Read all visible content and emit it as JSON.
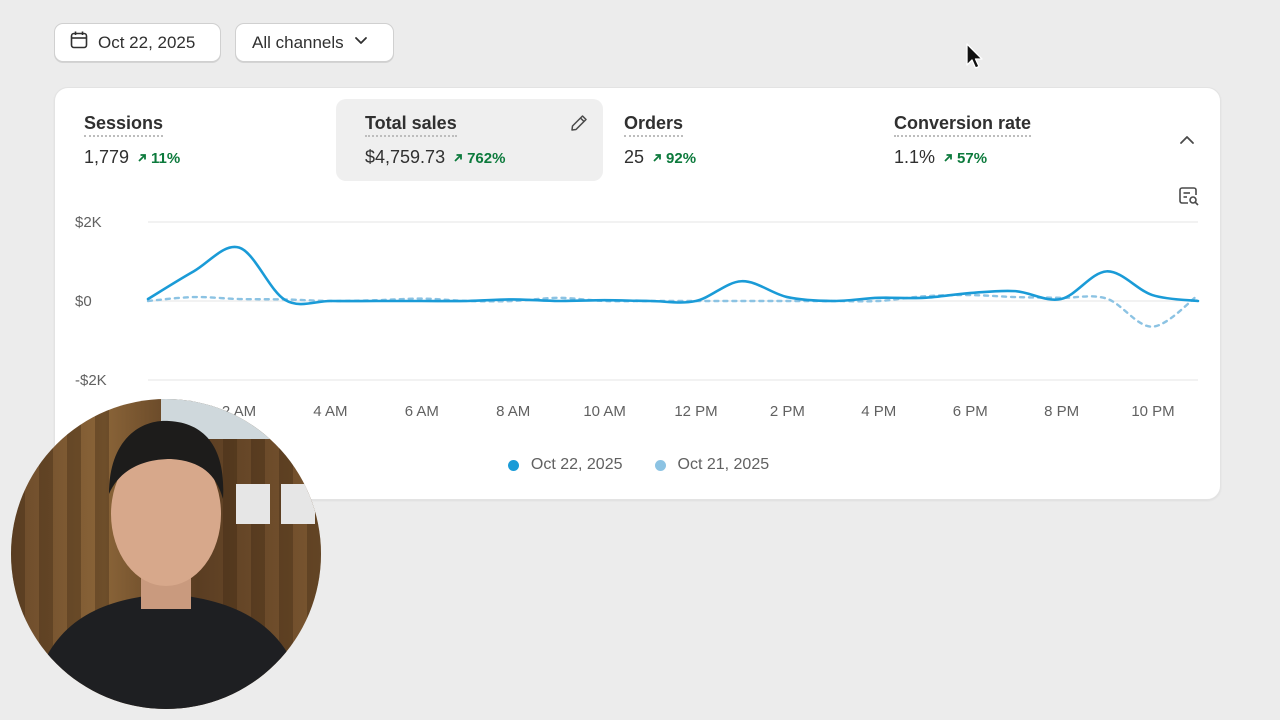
{
  "filters": {
    "date_label": "Oct 22, 2025",
    "channel_label": "All channels"
  },
  "metrics": [
    {
      "label": "Sessions",
      "value": "1,779",
      "change": "11%"
    },
    {
      "label": "Total sales",
      "value": "$4,759.73",
      "change": "762%"
    },
    {
      "label": "Orders",
      "value": "25",
      "change": "92%"
    },
    {
      "label": "Conversion rate",
      "value": "1.1%",
      "change": "57%"
    }
  ],
  "colors": {
    "current": "#1a9bd7",
    "previous": "#8cc3e3",
    "positive": "#0c7a3c"
  },
  "icons": {
    "date": "calendar-icon",
    "channel": "chevron-down-icon",
    "edit": "pencil-icon",
    "collapse": "chevron-up-icon",
    "insight": "chart-search-icon",
    "change": "arrow-up-right-icon"
  },
  "chart_data": {
    "type": "line",
    "y_ticks": [
      "$2K",
      "$0",
      "-$2K"
    ],
    "ylim": [
      -2000,
      2000
    ],
    "x_ticks": [
      "2 AM",
      "4 AM",
      "6 AM",
      "8 AM",
      "10 AM",
      "12 PM",
      "2 PM",
      "4 PM",
      "6 PM",
      "8 PM",
      "10 PM"
    ],
    "x": [
      "00:00",
      "01:00",
      "02:00",
      "03:00",
      "04:00",
      "05:00",
      "06:00",
      "07:00",
      "08:00",
      "09:00",
      "10:00",
      "11:00",
      "12:00",
      "13:00",
      "14:00",
      "15:00",
      "16:00",
      "17:00",
      "18:00",
      "19:00",
      "20:00",
      "21:00",
      "22:00",
      "23:00"
    ],
    "series": [
      {
        "name": "Oct 22, 2025",
        "values": [
          50,
          750,
          1350,
          30,
          0,
          0,
          0,
          0,
          40,
          0,
          20,
          0,
          0,
          500,
          100,
          0,
          80,
          80,
          200,
          250,
          50,
          750,
          150,
          0
        ],
        "style": "solid"
      },
      {
        "name": "Oct 21, 2025",
        "values": [
          0,
          100,
          50,
          40,
          0,
          20,
          60,
          0,
          0,
          80,
          0,
          0,
          0,
          0,
          0,
          0,
          0,
          120,
          150,
          100,
          80,
          60,
          -650,
          150
        ],
        "style": "dashed"
      }
    ],
    "grid": true,
    "legend": "bottom"
  }
}
